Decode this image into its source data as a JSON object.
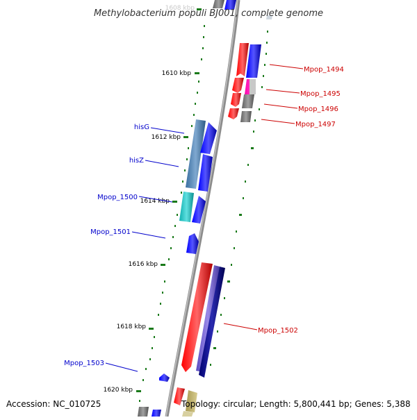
{
  "title": "Methylobacterium populi BJ001, complete genome",
  "footer": {
    "accession": "Accession: NC_010725",
    "topology": "Topology: circular; Length: 5,800,441 bp; Genes: 5,388"
  },
  "scale_labels": [
    "1608 kbp",
    "1610 kbp",
    "1612 kbp",
    "1614 kbp",
    "1616 kbp",
    "1618 kbp",
    "1620 kbp"
  ],
  "right_gene_labels": [
    "Mpop_1494",
    "Mpop_1495",
    "Mpop_1496",
    "Mpop_1497",
    "Mpop_1502"
  ],
  "left_gene_labels": [
    "hisG",
    "hisZ",
    "Mpop_1500",
    "Mpop_1501",
    "Mpop_1503"
  ],
  "colors": {
    "backbone": "#8c8c8c",
    "tick": "#1a7a1a",
    "forward_label": "#0000cc",
    "reverse_label": "#cc0000",
    "red": "#ff0000",
    "blue": "#0000ff",
    "grey": "#707070",
    "pink": "#ff33cc",
    "steelblue": "#4682b4",
    "cyan": "#20c8c8",
    "slateblue": "#6a5acd",
    "navy": "#000080",
    "khaki": "#bdb76b"
  }
}
